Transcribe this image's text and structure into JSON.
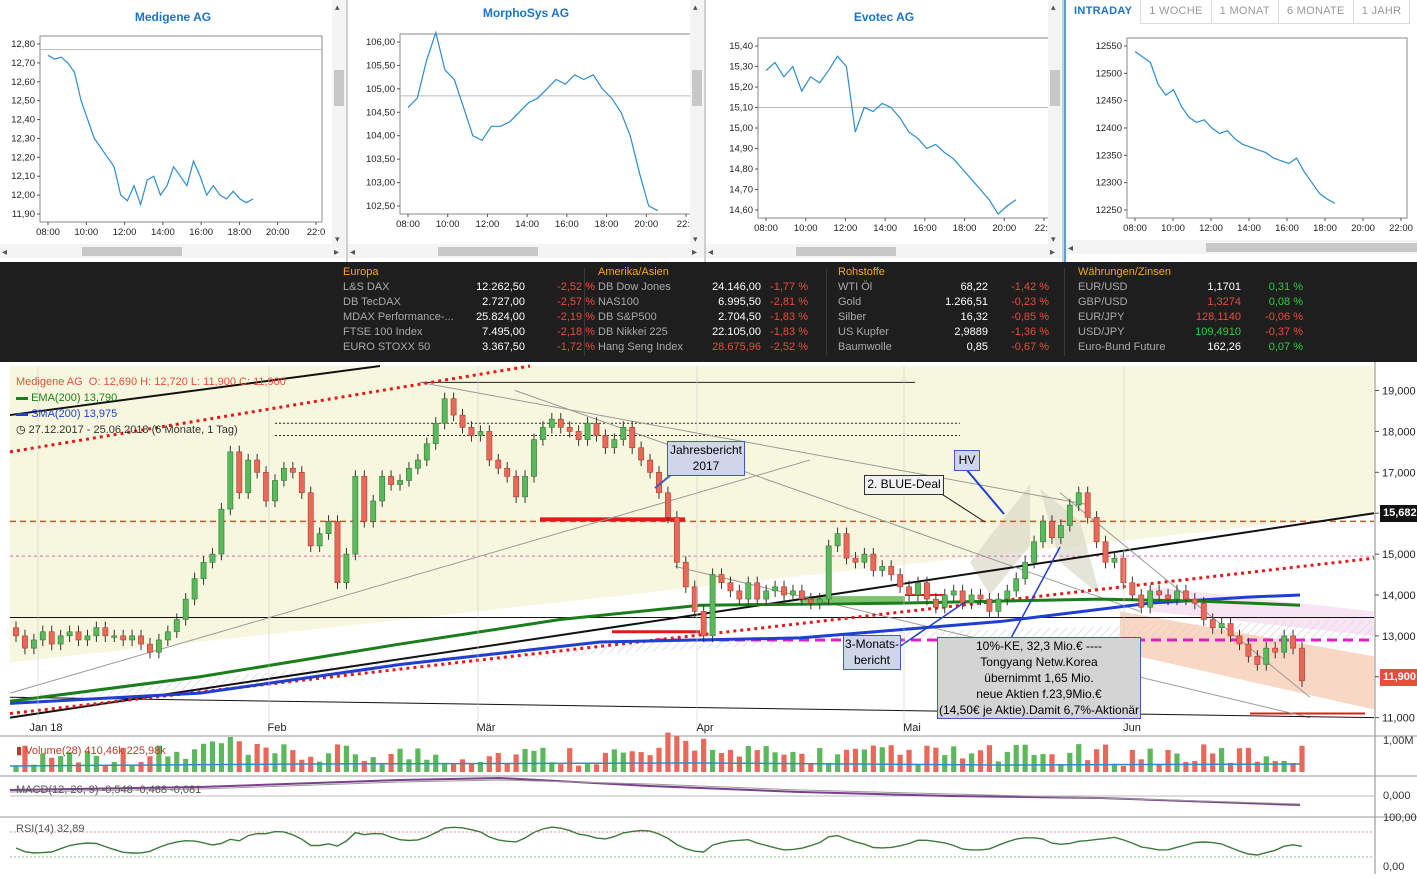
{
  "mini_charts": [
    {
      "title": "Medigene AG",
      "y_ticks": [
        "12,80",
        "12,70",
        "12,60",
        "12,50",
        "12,40",
        "12,30",
        "12,20",
        "12,10",
        "12,00",
        "11,90"
      ],
      "x_ticks": [
        "08:00",
        "10:00",
        "12:00",
        "14:00",
        "16:00",
        "18:00",
        "20:00",
        "22:0"
      ],
      "reference": 12.77,
      "series": [
        12.74,
        12.72,
        12.73,
        12.7,
        12.65,
        12.5,
        12.4,
        12.3,
        12.25,
        12.2,
        12.15,
        12.0,
        11.97,
        12.05,
        11.95,
        12.08,
        12.1,
        12.0,
        12.05,
        12.15,
        12.1,
        12.05,
        12.18,
        12.1,
        12.0,
        12.05,
        12.0,
        11.98,
        12.02,
        11.98,
        11.96,
        11.98
      ]
    },
    {
      "title": "MorphoSys AG",
      "y_ticks": [
        "106,00",
        "105,50",
        "105,00",
        "104,50",
        "104,00",
        "103,50",
        "103,00",
        "102,50"
      ],
      "x_ticks": [
        "08:00",
        "10:00",
        "12:00",
        "14:00",
        "16:00",
        "18:00",
        "20:00",
        "22:0"
      ],
      "reference": 104.85,
      "series": [
        104.6,
        104.8,
        105.6,
        106.2,
        105.4,
        105.2,
        104.6,
        104.0,
        103.9,
        104.2,
        104.2,
        104.3,
        104.5,
        104.7,
        104.8,
        105.0,
        105.2,
        105.1,
        105.3,
        105.2,
        105.3,
        105.0,
        104.8,
        104.5,
        104.0,
        103.2,
        102.5,
        102.4
      ]
    },
    {
      "title": "Evotec AG",
      "y_ticks": [
        "15,40",
        "15,30",
        "15,20",
        "15,10",
        "15,00",
        "14,90",
        "14,80",
        "14,70",
        "14,60"
      ],
      "x_ticks": [
        "08:00",
        "10:00",
        "12:00",
        "14:00",
        "16:00",
        "18:00",
        "20:00",
        "22:0"
      ],
      "reference": 15.1,
      "series": [
        15.28,
        15.32,
        15.25,
        15.3,
        15.18,
        15.25,
        15.22,
        15.28,
        15.35,
        15.3,
        14.98,
        15.1,
        15.08,
        15.12,
        15.1,
        15.05,
        14.98,
        14.95,
        14.9,
        14.92,
        14.88,
        14.85,
        14.8,
        14.75,
        14.7,
        14.65,
        14.58,
        14.62,
        14.65
      ]
    }
  ],
  "tabs": [
    {
      "label": "INTRADAY",
      "active": true
    },
    {
      "label": "1 WOCHE",
      "active": false
    },
    {
      "label": "1 MONAT",
      "active": false
    },
    {
      "label": "6 MONATE",
      "active": false
    },
    {
      "label": "1 JAHR",
      "active": false
    }
  ],
  "intraday": {
    "y_ticks": [
      "12550",
      "12500",
      "12450",
      "12400",
      "12350",
      "12300",
      "12250"
    ],
    "x_ticks": [
      "08:00",
      "10:00",
      "12:00",
      "14:00",
      "16:00",
      "18:00",
      "20:00",
      "22:00"
    ],
    "series": [
      12540,
      12530,
      12520,
      12480,
      12460,
      12470,
      12440,
      12420,
      12410,
      12415,
      12400,
      12390,
      12395,
      12380,
      12370,
      12365,
      12360,
      12355,
      12345,
      12340,
      12335,
      12345,
      12320,
      12300,
      12280,
      12270,
      12262
    ]
  },
  "ticker": [
    {
      "heading": "Europa",
      "rows": [
        [
          "L&S DAX",
          "12.262,50",
          "-2,52 %"
        ],
        [
          "DB TecDAX",
          "2.727,00",
          "-2,57 %"
        ],
        [
          "MDAX Performance-...",
          "25.824,00",
          "-2,19 %"
        ],
        [
          "FTSE 100 Index",
          "7.495,00",
          "-2,18 %"
        ],
        [
          "EURO STOXX 50",
          "3.367,50",
          "-1,72 %"
        ]
      ]
    },
    {
      "heading": "Amerika/Asien",
      "rows": [
        [
          "DB Dow Jones",
          "24.146,00",
          "-1,77 %"
        ],
        [
          "NAS100",
          "6.995,50",
          "-2,81 %"
        ],
        [
          "DB S&P500",
          "2.704,50",
          "-1,83 %"
        ],
        [
          "DB Nikkei 225",
          "22.105,00",
          "-1,83 %"
        ],
        [
          "Hang Seng Index",
          "28.675,96",
          "-2,52 %"
        ]
      ]
    },
    {
      "heading": "Rohstoffe",
      "rows": [
        [
          "WTI Öl",
          "68,22",
          "-1,42 %"
        ],
        [
          "Gold",
          "1.266,51",
          "-0,23 %"
        ],
        [
          "Silber",
          "16,32",
          "-0,85 %"
        ],
        [
          "US Kupfer",
          "2,9889",
          "-1,36 %"
        ],
        [
          "Baumwolle",
          "0,85",
          "-0,67 %"
        ]
      ]
    },
    {
      "heading": "Währungen/Zinsen",
      "rows": [
        [
          "EUR/USD",
          "1,1701",
          "0,31 %"
        ],
        [
          "GBP/USD",
          "1,3274",
          "0,08 %"
        ],
        [
          "EUR/JPY",
          "128,1140",
          "-0,06 %"
        ],
        [
          "USD/JPY",
          "109,4910",
          "-0,37 %"
        ],
        [
          "Euro-Bund Future",
          "162,26",
          "0,07 %"
        ]
      ]
    }
  ],
  "main": {
    "legend": {
      "title": "Medigene AG",
      "ohlc": "O: 12,690  H: 12,720  L: 11,900  C: 11,900",
      "ema": "EMA(200)  13,790",
      "sma": "SMA(200)  13,975",
      "range": "27.12.2017 - 25.06.2018  (6 Monate, 1 Tag)"
    },
    "price_badges": [
      "15,682",
      "11,900"
    ],
    "annotations": [
      "Jahresbericht",
      "2017",
      "HV",
      "2. BLUE-Deal",
      "3-Monats-",
      "bericht",
      "10%-KE, 32,3 Mio.€ ----",
      "Tongyang Netw.Korea",
      "übernimmt 1,65 Mio.",
      "neue Aktien f.23,9Mio.€",
      "(14,50€ je Aktie).Damit 6,7%-Aktionär"
    ],
    "volume_label": "Volume(28)  410,46k  225,98k",
    "macd_label": "MACD(12, 26, 9)  -0,548  -0,468  -0,081",
    "rsi_label": "RSI(14)  32,89",
    "sub_ticks": [
      "1,00M",
      "0,000",
      "100,00",
      "0,00"
    ]
  },
  "chart_data": {
    "type": "candlestick",
    "title": "Medigene AG",
    "x_months": [
      "Jan 18",
      "Feb",
      "Mär",
      "Apr",
      "Mai",
      "Jun"
    ],
    "y_ticks": [
      "19,000",
      "18,000",
      "17,000",
      "16,000",
      "15,000",
      "14,000",
      "13,000",
      "12,000",
      "11,000"
    ],
    "ylim": [
      10.6,
      19.6
    ],
    "ema200": 13.79,
    "sma200": 13.975,
    "last": 11.9,
    "candles_close": [
      13.0,
      12.7,
      12.9,
      13.1,
      12.8,
      13.0,
      13.1,
      12.9,
      13.0,
      13.2,
      13.0,
      13.0,
      12.9,
      13.0,
      12.8,
      12.6,
      12.9,
      13.1,
      13.4,
      13.9,
      14.4,
      14.8,
      15.0,
      16.1,
      17.5,
      16.5,
      17.3,
      17.0,
      16.3,
      16.8,
      17.1,
      17.0,
      16.5,
      15.2,
      15.5,
      15.8,
      14.3,
      15.0,
      16.9,
      15.8,
      16.3,
      16.9,
      16.7,
      16.8,
      17.1,
      17.3,
      17.7,
      18.2,
      18.8,
      18.4,
      18.1,
      17.9,
      18.0,
      17.3,
      17.1,
      16.9,
      16.4,
      16.9,
      17.8,
      18.1,
      18.3,
      18.1,
      18.0,
      17.8,
      18.2,
      17.9,
      17.6,
      17.8,
      18.1,
      17.6,
      17.3,
      17.0,
      16.5,
      15.9,
      14.8,
      14.2,
      13.6,
      13.0,
      14.5,
      14.3,
      14.1,
      13.9,
      14.3,
      13.9,
      14.1,
      14.2,
      14.0,
      14.1,
      13.9,
      13.8,
      13.9,
      15.2,
      15.5,
      14.9,
      14.8,
      15.0,
      14.6,
      14.7,
      14.5,
      14.2,
      14.0,
      14.3,
      13.9,
      13.7,
      14.0,
      14.1,
      13.8,
      14.0,
      13.9,
      13.6,
      13.9,
      14.1,
      14.4,
      14.8,
      15.3,
      15.8,
      15.4,
      15.7,
      16.2,
      16.5,
      15.9,
      15.3,
      14.8,
      14.9,
      14.3,
      14.0,
      13.7,
      14.1,
      14.0,
      13.9,
      14.1,
      13.9,
      13.8,
      13.4,
      13.2,
      13.3,
      13.0,
      12.8,
      12.5,
      12.3,
      12.7,
      12.6,
      13.0,
      12.7,
      11.9
    ]
  }
}
